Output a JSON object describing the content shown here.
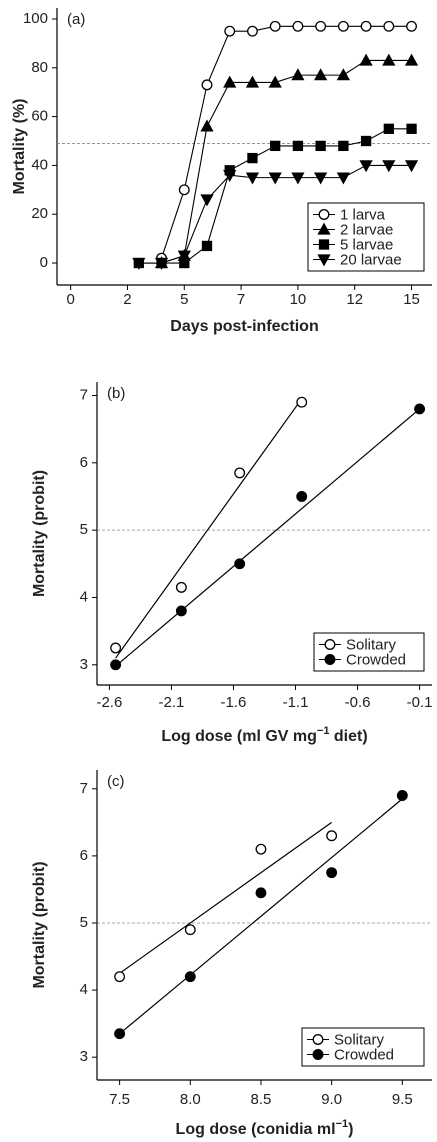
{
  "chart_data": [
    {
      "type": "line",
      "label": "(a)",
      "ylabel": "Mortality (%)",
      "xlabel": "Days post-infection",
      "x": [
        3,
        4,
        5,
        6,
        7,
        8,
        9,
        10,
        11,
        12,
        13,
        14,
        15
      ],
      "xlim": [
        -0.6,
        15.9
      ],
      "xticks": [
        0,
        {
          "value": 2.5,
          "label": "2"
        },
        5,
        {
          "value": 7.5,
          "label": "7"
        },
        10,
        {
          "value": 12.5,
          "label": "12"
        },
        15
      ],
      "ylim": [
        -9,
        104.5
      ],
      "yticks": [
        0,
        20,
        40,
        60,
        80,
        100
      ],
      "hline": 49,
      "connect": true,
      "legend": "lower right",
      "series": [
        {
          "name": "1 larva",
          "color": "#000000",
          "marker": "circle",
          "filled": false,
          "values": [
            null,
            2,
            30,
            73,
            95,
            95,
            97,
            97,
            97,
            97,
            97,
            97,
            97
          ]
        },
        {
          "name": "2 larvae",
          "color": "#000000",
          "marker": "triangle-up",
          "filled": true,
          "values": [
            null,
            0,
            3,
            56,
            74,
            74,
            74,
            77,
            77,
            77,
            83,
            83,
            83
          ]
        },
        {
          "name": "5 larvae",
          "color": "#000000",
          "marker": "square",
          "filled": true,
          "values": [
            0,
            0,
            0,
            7,
            38,
            43,
            48,
            48,
            48,
            48,
            50,
            55,
            55
          ]
        },
        {
          "name": "20 larvae",
          "color": "#000000",
          "marker": "triangle-down",
          "filled": true,
          "values": [
            0,
            0,
            3,
            26,
            36,
            35,
            35,
            35,
            35,
            35,
            40,
            40,
            40
          ]
        }
      ]
    },
    {
      "type": "scatter",
      "label": "(b)",
      "ylabel": "Mortality (probit)",
      "xlabel": [
        "Log dose (ml GV mg",
        "−1",
        " diet)"
      ],
      "xlim": [
        -2.7,
        0
      ],
      "xticks": [
        -2.6,
        -2.1,
        -1.6,
        -1.1,
        -0.6,
        -0.1
      ],
      "ylim": [
        2.7,
        7.2
      ],
      "yticks": [
        3,
        4,
        5,
        6,
        7
      ],
      "hline": 5,
      "connect": false,
      "legend": "lower right",
      "series": [
        {
          "name": "Solitary",
          "color": "#000000",
          "marker": "circle",
          "filled": false,
          "x": [
            -2.55,
            -2.02,
            -1.55,
            -1.05
          ],
          "values": [
            3.25,
            4.15,
            5.85,
            6.9
          ],
          "fit_x": [
            -2.55,
            -1.05
          ],
          "fit_y": [
            3.1,
            6.95
          ]
        },
        {
          "name": "Crowded",
          "color": "#000000",
          "marker": "circle",
          "filled": true,
          "x": [
            -2.55,
            -2.02,
            -1.55,
            -1.05,
            -0.1
          ],
          "values": [
            3.0,
            3.8,
            4.5,
            5.5,
            6.8
          ],
          "fit_x": [
            -2.55,
            -0.1
          ],
          "fit_y": [
            2.98,
            6.8
          ]
        }
      ]
    },
    {
      "type": "scatter",
      "label": "(c)",
      "ylabel": "Mortality (probit)",
      "xlabel": [
        "Log dose (conidia ml",
        "−1",
        ")"
      ],
      "xlim": [
        7.34,
        9.71
      ],
      "xticks": [
        "7.5",
        "8.0",
        "8.5",
        "9.0",
        "9.5"
      ],
      "ylim": [
        2.66,
        7.28
      ],
      "yticks": [
        3,
        4,
        5,
        6,
        7
      ],
      "hline": 5,
      "connect": false,
      "legend": "lower right",
      "series": [
        {
          "name": "Solitary",
          "color": "#000000",
          "marker": "circle",
          "filled": false,
          "x": [
            7.5,
            8.0,
            8.5,
            9.0
          ],
          "values": [
            4.2,
            4.9,
            6.1,
            6.3
          ],
          "fit_x": [
            7.5,
            9.0
          ],
          "fit_y": [
            4.25,
            6.5
          ]
        },
        {
          "name": "Crowded",
          "color": "#000000",
          "marker": "circle",
          "filled": true,
          "x": [
            7.5,
            8.0,
            8.5,
            9.0,
            9.5
          ],
          "values": [
            3.35,
            4.2,
            5.45,
            5.75,
            6.9
          ],
          "fit_x": [
            7.5,
            9.5
          ],
          "fit_y": [
            3.35,
            6.85
          ]
        }
      ]
    }
  ]
}
